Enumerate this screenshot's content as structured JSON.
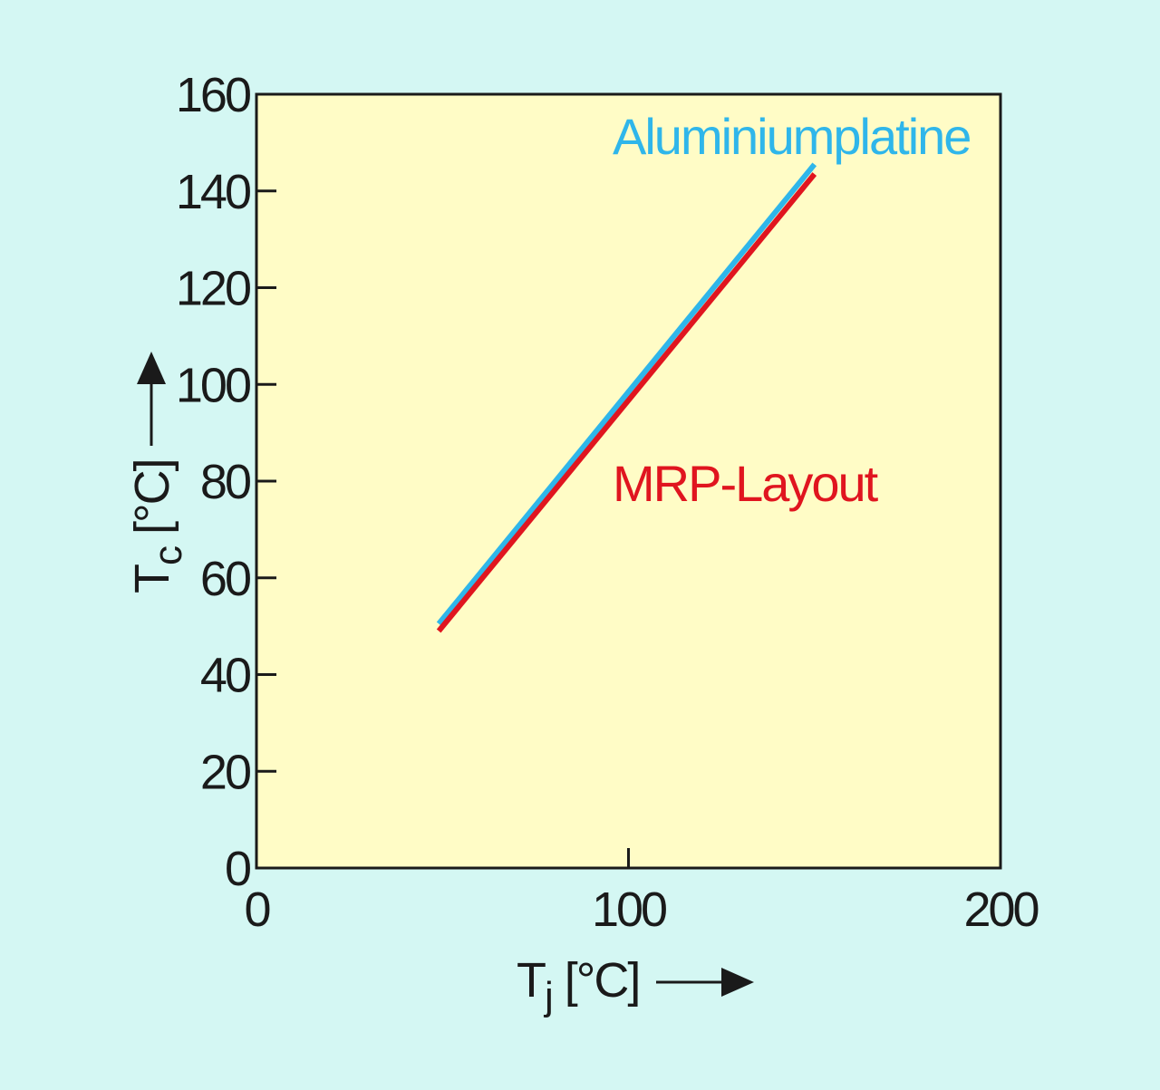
{
  "colors": {
    "background": "#d4f7f3",
    "plot_background": "#fffcc6",
    "axis": "#1a1a1a",
    "aluminium": "#2fb6ea",
    "mrp": "#e0151f"
  },
  "chart_data": {
    "type": "line",
    "xlim": [
      0,
      200
    ],
    "ylim": [
      0,
      160
    ],
    "x_ticks": [
      0,
      100,
      200
    ],
    "y_ticks": [
      0,
      20,
      40,
      60,
      80,
      100,
      120,
      140,
      160
    ],
    "xlabel": {
      "main": "T",
      "sub": "j",
      "unit": "[°C]"
    },
    "ylabel": {
      "main": "T",
      "sub": "c",
      "unit": "[°C]"
    },
    "grid": false,
    "legend": "inline labels",
    "series": [
      {
        "name": "Aluminiumplatine",
        "color_key": "aluminium",
        "x": [
          49,
          150
        ],
        "y": [
          50.5,
          145.5
        ]
      },
      {
        "name": "MRP-Layout",
        "color_key": "mrp",
        "x": [
          49,
          150
        ],
        "y": [
          49,
          143.5
        ]
      }
    ]
  }
}
